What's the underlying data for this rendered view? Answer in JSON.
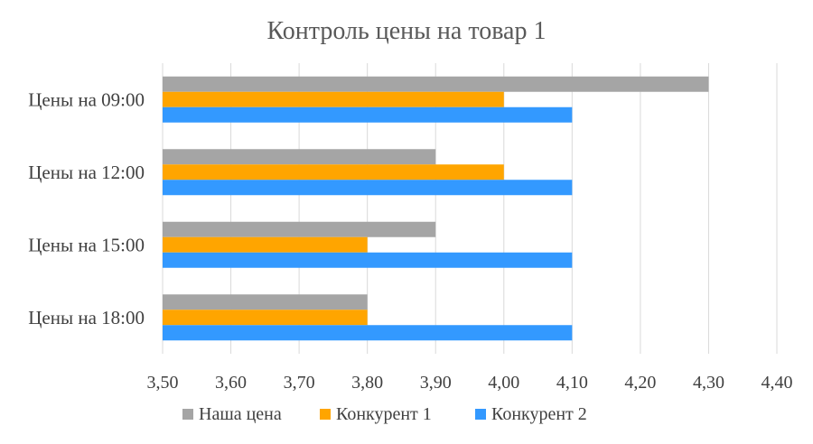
{
  "chart_data": {
    "type": "bar",
    "orientation": "horizontal",
    "title": "Контроль цены на товар 1",
    "categories": [
      "Цены на 09:00",
      "Цены на 12:00",
      "Цены на 15:00",
      "Цены на 18:00"
    ],
    "series": [
      {
        "name": "Наша цена",
        "color": "#a5a5a5",
        "values": [
          4.3,
          3.9,
          3.9,
          3.8
        ]
      },
      {
        "name": "Конкурент 1",
        "color": "#ffa500",
        "values": [
          4.0,
          4.0,
          3.8,
          3.8
        ]
      },
      {
        "name": "Конкурент 2",
        "color": "#3399ff",
        "values": [
          4.1,
          4.1,
          4.1,
          4.1
        ]
      }
    ],
    "xlim": [
      3.5,
      4.4
    ],
    "x_ticks": [
      "3,50",
      "3,60",
      "3,70",
      "3,80",
      "3,90",
      "4,00",
      "4,10",
      "4,20",
      "4,30",
      "4,40"
    ],
    "grid": true,
    "legend_position": "bottom"
  }
}
